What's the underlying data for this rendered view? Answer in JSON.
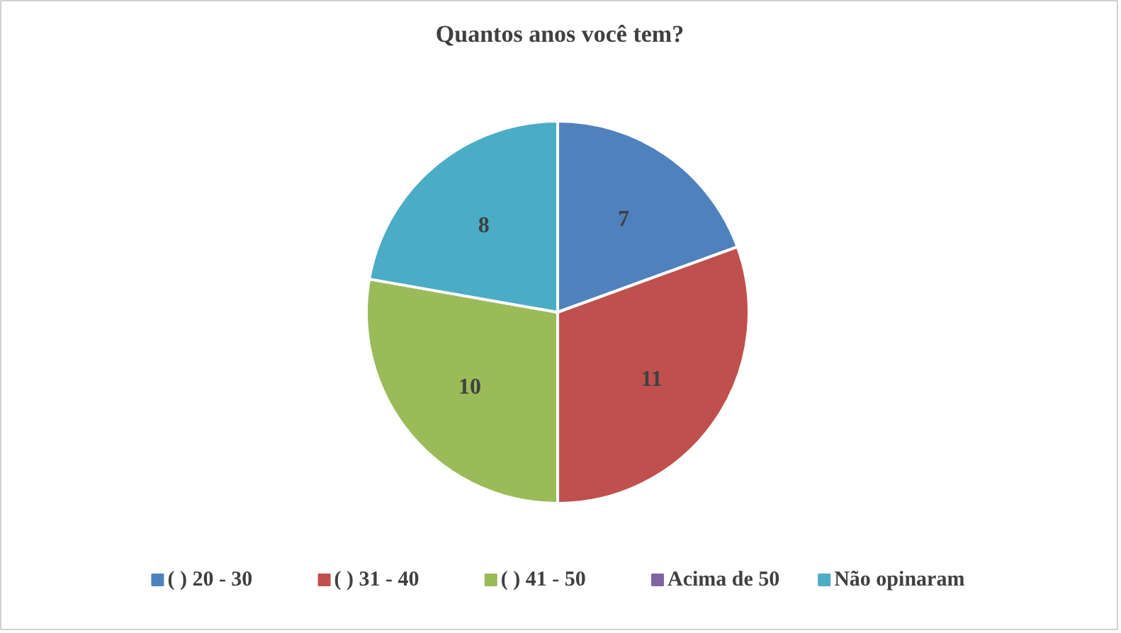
{
  "chart_data": {
    "type": "pie",
    "title": "Quantos anos você tem?",
    "categories": [
      "( ) 20 - 30",
      "( ) 31 - 40",
      "( ) 41 - 50",
      "Acima de 50",
      "Não opinaram"
    ],
    "values": [
      7,
      11,
      10,
      0,
      8
    ],
    "colors": [
      "#4f81bd",
      "#c0504d",
      "#9bbb59",
      "#8064a2",
      "#4bacc6"
    ],
    "value_labels": [
      "7",
      "11",
      "10",
      null,
      "8"
    ],
    "legend": "bottom"
  }
}
